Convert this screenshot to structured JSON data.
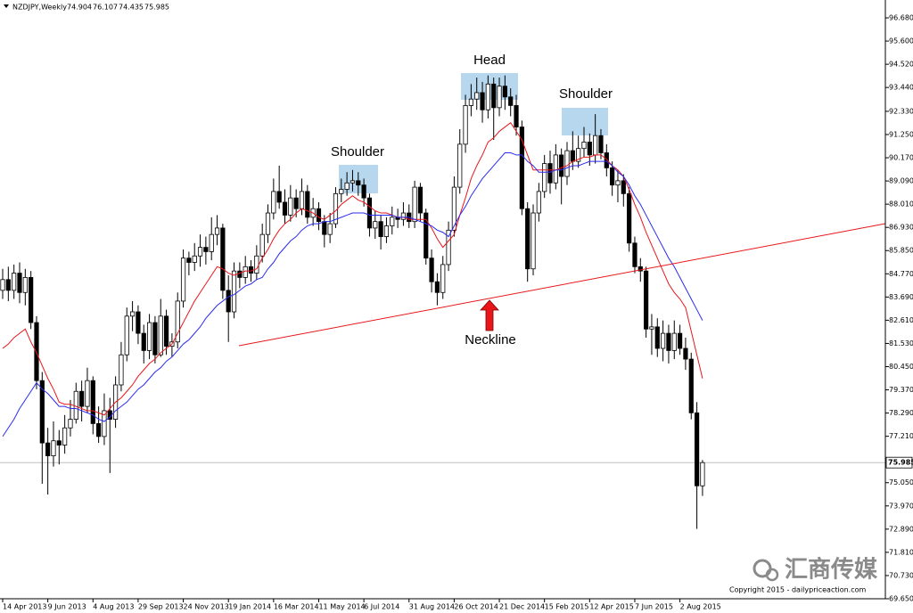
{
  "chart_data": {
    "type": "candlestick",
    "title": "NZDJPY,Weekly",
    "categories": [
      "14 Apr 2013",
      null,
      null,
      null,
      null,
      null,
      null,
      null,
      "9 Jun 2013",
      null,
      null,
      null,
      null,
      null,
      null,
      null,
      "4 Aug 2013",
      null,
      null,
      null,
      null,
      null,
      null,
      null,
      "29 Sep 2013",
      null,
      null,
      null,
      null,
      null,
      null,
      null,
      "24 Nov 2013",
      null,
      null,
      null,
      null,
      null,
      null,
      null,
      "19 Jan 2014",
      null,
      null,
      null,
      null,
      null,
      null,
      null,
      "16 Mar 2014",
      null,
      null,
      null,
      null,
      null,
      null,
      null,
      "11 May 2014",
      null,
      null,
      null,
      null,
      null,
      null,
      null,
      "6 Jul 2014",
      null,
      null,
      null,
      null,
      null,
      null,
      null,
      "31 Aug 2014",
      null,
      null,
      null,
      null,
      null,
      null,
      null,
      "26 Oct 2014",
      null,
      null,
      null,
      null,
      null,
      null,
      null,
      "21 Dec 2014",
      null,
      null,
      null,
      null,
      null,
      null,
      null,
      "15 Feb 2015",
      null,
      null,
      null,
      null,
      null,
      null,
      null,
      "12 Apr 2015",
      null,
      null,
      null,
      null,
      null,
      null,
      null,
      "7 Jun 2015",
      null,
      null,
      null,
      null,
      null,
      null,
      null,
      "2 Aug 2015",
      null,
      null,
      null,
      null
    ],
    "open": [
      84.0,
      84.5,
      84.0,
      84.8,
      83.9,
      84.6,
      82.5,
      79.8,
      76.9,
      76.3,
      77.0,
      76.8,
      77.6,
      78.0,
      79.3,
      78.6,
      79.8,
      77.8,
      77.2,
      78.4,
      78.0,
      79.6,
      81.0,
      82.8,
      83.0,
      82.0,
      81.2,
      82.5,
      81.0,
      82.8,
      81.4,
      81.6,
      83.5,
      85.5,
      85.3,
      85.6,
      86.0,
      85.8,
      86.6,
      86.9,
      84.0,
      83.0,
      84.9,
      84.6,
      85.1,
      84.8,
      85.6,
      86.6,
      87.6,
      88.6,
      88.1,
      87.5,
      88.3,
      87.8,
      88.6,
      87.4,
      87.8,
      87.2,
      86.6,
      87.1,
      88.5,
      88.7,
      89.0,
      89.1,
      88.9,
      88.3,
      86.9,
      87.2,
      86.5,
      87.0,
      87.4,
      87.3,
      87.6,
      87.2,
      88.8,
      87.6,
      85.5,
      84.4,
      83.9,
      85.2,
      86.8,
      88.8,
      90.8,
      92.6,
      92.9,
      93.2,
      92.4,
      93.6,
      92.5,
      93.5,
      93.0,
      92.6,
      91.6,
      87.8,
      85.0,
      87.6,
      88.6,
      89.9,
      89.0,
      90.3,
      89.3,
      90.5,
      90.0,
      90.6,
      90.9,
      90.3,
      91.2,
      90.4,
      89.7,
      88.9,
      89.1,
      88.5,
      86.2,
      85.1,
      84.9,
      82.2,
      82.3,
      81.3,
      82.0,
      81.2,
      82.0,
      81.3,
      80.8,
      78.3,
      74.904
    ],
    "high": [
      85.0,
      85.1,
      85.2,
      85.3,
      85.0,
      84.9,
      82.8,
      80.2,
      77.6,
      77.9,
      77.5,
      78.2,
      78.9,
      79.7,
      79.8,
      80.4,
      80.0,
      78.6,
      79.2,
      79.0,
      80.0,
      81.6,
      83.2,
      83.5,
      83.3,
      82.4,
      82.9,
      82.8,
      83.6,
      83.1,
      82.0,
      83.9,
      85.9,
      85.8,
      86.2,
      86.6,
      86.5,
      87.4,
      87.5,
      87.1,
      84.7,
      85.3,
      85.3,
      85.6,
      85.4,
      86.1,
      87.1,
      88.0,
      89.2,
      89.8,
      88.7,
      88.9,
      88.7,
      89.2,
      88.9,
      88.3,
      88.1,
      87.5,
      87.6,
      88.8,
      89.2,
      89.5,
      89.6,
      89.5,
      89.2,
      88.5,
      87.7,
      87.5,
      87.4,
      87.9,
      87.8,
      88.1,
      88.0,
      89.1,
      89.0,
      87.8,
      85.9,
      84.8,
      85.6,
      87.2,
      89.3,
      91.5,
      93.1,
      93.6,
      93.9,
      93.7,
      94.0,
      93.9,
      93.9,
      94.0,
      93.4,
      93.1,
      91.9,
      88.1,
      88.0,
      89.0,
      90.3,
      90.5,
      90.8,
      90.6,
      90.9,
      91.4,
      91.2,
      91.6,
      91.3,
      92.2,
      91.5,
      90.8,
      90.0,
      89.6,
      89.4,
      88.8,
      86.5,
      85.5,
      85.1,
      82.9,
      82.7,
      82.6,
      82.4,
      82.6,
      82.4,
      81.8,
      81.1,
      78.8,
      76.107
    ],
    "low": [
      83.6,
      83.5,
      83.6,
      83.4,
      83.3,
      82.2,
      79.4,
      75.0,
      74.5,
      75.8,
      75.9,
      76.4,
      77.2,
      77.8,
      77.9,
      78.3,
      77.3,
      76.9,
      76.8,
      75.5,
      77.6,
      79.3,
      80.7,
      82.1,
      81.5,
      80.6,
      80.8,
      80.6,
      80.9,
      81.0,
      80.9,
      81.3,
      83.2,
      84.7,
      84.9,
      85.1,
      85.2,
      85.4,
      86.1,
      83.6,
      81.6,
      82.7,
      84.1,
      84.3,
      84.4,
      84.5,
      85.3,
      86.2,
      87.3,
      87.8,
      87.1,
      87.2,
      87.4,
      87.5,
      87.1,
      87.0,
      86.8,
      86.0,
      86.2,
      86.9,
      88.1,
      88.4,
      88.6,
      88.4,
      87.9,
      86.5,
      86.4,
      85.9,
      86.2,
      86.6,
      86.9,
      87.0,
      86.9,
      86.9,
      87.2,
      85.2,
      83.9,
      83.3,
      83.6,
      84.9,
      86.5,
      88.5,
      90.4,
      92.1,
      92.4,
      91.8,
      92.0,
      91.0,
      92.1,
      92.4,
      92.1,
      91.2,
      87.5,
      84.4,
      84.7,
      87.2,
      88.3,
      88.5,
      88.7,
      88.0,
      88.9,
      89.6,
      89.7,
      90.2,
      89.8,
      89.9,
      90.1,
      89.3,
      88.4,
      88.1,
      87.9,
      85.8,
      84.8,
      84.4,
      81.8,
      81.0,
      80.9,
      80.7,
      80.6,
      80.8,
      81.0,
      80.3,
      78.0,
      72.9,
      74.435
    ],
    "close": [
      84.5,
      84.0,
      84.8,
      83.9,
      84.6,
      82.5,
      79.8,
      76.9,
      76.3,
      77.0,
      76.8,
      77.6,
      78.0,
      79.3,
      78.6,
      79.8,
      77.8,
      77.2,
      78.4,
      78.0,
      79.6,
      81.0,
      82.8,
      83.0,
      82.0,
      81.2,
      82.5,
      81.0,
      82.8,
      81.4,
      81.6,
      83.5,
      85.5,
      85.3,
      85.6,
      86.0,
      85.8,
      86.6,
      86.9,
      84.0,
      83.0,
      84.9,
      84.6,
      85.1,
      84.8,
      85.6,
      86.6,
      87.6,
      88.6,
      88.1,
      87.5,
      88.3,
      87.8,
      88.6,
      87.4,
      87.8,
      87.2,
      86.6,
      87.1,
      88.5,
      88.7,
      89.0,
      89.1,
      88.9,
      88.3,
      86.9,
      87.2,
      86.5,
      87.0,
      87.4,
      87.3,
      87.6,
      87.2,
      88.8,
      87.6,
      85.5,
      84.4,
      83.9,
      85.2,
      86.8,
      88.8,
      90.8,
      92.6,
      92.9,
      93.2,
      92.4,
      93.6,
      92.5,
      93.5,
      93.0,
      92.6,
      91.6,
      87.8,
      85.0,
      87.6,
      88.6,
      89.9,
      89.0,
      90.3,
      89.3,
      90.5,
      90.0,
      90.6,
      90.9,
      90.3,
      91.2,
      90.4,
      89.7,
      88.9,
      89.1,
      88.5,
      86.2,
      85.1,
      84.9,
      82.2,
      82.3,
      81.3,
      82.0,
      81.2,
      82.0,
      81.3,
      80.8,
      78.3,
      74.904,
      75.985
    ],
    "series": [
      {
        "color": "#e8161a",
        "values": [
          81.3,
          81.5,
          81.8,
          82.0,
          82.2,
          81.6,
          81.1,
          80.5,
          79.9,
          79.4,
          78.8,
          78.7,
          78.7,
          78.6,
          78.5,
          78.4,
          78.4,
          78.3,
          78.2,
          78.5,
          78.8,
          79.0,
          79.3,
          79.6,
          80.0,
          80.3,
          80.6,
          80.8,
          81.1,
          81.3,
          81.5,
          82.0,
          82.5,
          83.0,
          83.5,
          83.9,
          84.3,
          84.7,
          85.1,
          85.0,
          84.8,
          84.7,
          84.8,
          84.9,
          84.9,
          85.0,
          85.5,
          85.9,
          86.4,
          86.8,
          87.1,
          87.3,
          87.6,
          87.8,
          87.7,
          87.6,
          87.4,
          87.3,
          87.5,
          87.7,
          88.0,
          88.2,
          88.4,
          88.2,
          88.1,
          87.9,
          87.7,
          87.6,
          87.6,
          87.5,
          87.4,
          87.4,
          87.3,
          87.3,
          87.3,
          87.3,
          86.9,
          86.4,
          86.0,
          86.3,
          86.6,
          87.5,
          88.3,
          89.2,
          89.8,
          90.3,
          90.9,
          91.1,
          91.4,
          91.6,
          91.8,
          91.4,
          91.0,
          90.3,
          89.6,
          89.6,
          89.6,
          89.6,
          89.6,
          89.7,
          89.8,
          90.0,
          90.1,
          90.2,
          90.2,
          90.3,
          90.3,
          90.1,
          89.8,
          89.6,
          89.3,
          88.7,
          88.0,
          87.4,
          86.7,
          86.1,
          85.5,
          84.9,
          84.3,
          83.9,
          83.6,
          83.2,
          82.1,
          81.0,
          79.9
        ]
      },
      {
        "color": "#2b2bf0",
        "values": [
          77.2,
          77.6,
          78.0,
          78.5,
          78.9,
          79.3,
          79.7,
          79.4,
          79.2,
          78.9,
          78.6,
          78.6,
          78.5,
          78.5,
          78.4,
          78.3,
          78.2,
          78.0,
          77.9,
          78.1,
          78.4,
          78.6,
          78.8,
          79.1,
          79.4,
          79.6,
          79.9,
          80.2,
          80.4,
          80.7,
          80.9,
          81.2,
          81.5,
          81.7,
          82.0,
          82.3,
          82.7,
          83.0,
          83.3,
          83.5,
          83.7,
          83.8,
          84.0,
          84.2,
          84.3,
          84.5,
          84.6,
          85.0,
          85.3,
          85.7,
          86.0,
          86.3,
          86.5,
          86.8,
          87.0,
          87.1,
          87.1,
          87.2,
          87.2,
          87.3,
          87.4,
          87.5,
          87.6,
          87.6,
          87.6,
          87.5,
          87.5,
          87.5,
          87.5,
          87.5,
          87.4,
          87.4,
          87.4,
          87.3,
          87.2,
          87.1,
          87.0,
          86.8,
          86.7,
          86.5,
          87.0,
          87.5,
          87.9,
          88.4,
          88.8,
          89.2,
          89.5,
          89.8,
          90.1,
          90.4,
          90.4,
          90.3,
          90.3,
          90.0,
          89.8,
          89.5,
          89.5,
          89.5,
          89.6,
          89.6,
          89.7,
          89.8,
          89.8,
          89.9,
          90.0,
          90.0,
          90.0,
          90.0,
          89.8,
          89.5,
          89.3,
          88.9,
          88.4,
          88.0,
          87.5,
          87.0,
          86.5,
          86.0,
          85.5,
          85.1,
          84.6,
          84.1,
          83.6,
          83.1,
          82.6
        ]
      }
    ],
    "ylim": [
      69.65,
      97.51
    ],
    "yticks": [
      {
        "value": 96.68,
        "label": "96.680"
      },
      {
        "value": 95.6,
        "label": "95.600"
      },
      {
        "value": 94.52,
        "label": "94.520"
      },
      {
        "value": 93.44,
        "label": "93.440"
      },
      {
        "value": 92.33,
        "label": "92.330"
      },
      {
        "value": 91.25,
        "label": "91.250"
      },
      {
        "value": 90.17,
        "label": "90.170"
      },
      {
        "value": 89.09,
        "label": "89.090"
      },
      {
        "value": 88.01,
        "label": "88.010"
      },
      {
        "value": 86.93,
        "label": "86.930"
      },
      {
        "value": 85.85,
        "label": "85.850"
      },
      {
        "value": 84.77,
        "label": "84.770"
      },
      {
        "value": 83.69,
        "label": "83.690"
      },
      {
        "value": 82.61,
        "label": "82.610"
      },
      {
        "value": 81.53,
        "label": "81.530"
      },
      {
        "value": 80.45,
        "label": "80.450"
      },
      {
        "value": 79.37,
        "label": "79.370"
      },
      {
        "value": 78.29,
        "label": "78.290"
      },
      {
        "value": 77.21,
        "label": "77.210"
      },
      {
        "value": 75.05,
        "label": "75.050"
      },
      {
        "value": 73.97,
        "label": "73.970"
      },
      {
        "value": 72.89,
        "label": "72.890"
      },
      {
        "value": 71.81,
        "label": "71.810"
      },
      {
        "value": 70.73,
        "label": "70.730"
      },
      {
        "value": 69.65,
        "label": "69.650"
      }
    ],
    "annotations": [
      "Shoulder",
      "Head",
      "Shoulder",
      "Neckline"
    ],
    "watermark": "汇商传媒",
    "copyright": "Copyright 2015 - dailypriceaction.com"
  }
}
